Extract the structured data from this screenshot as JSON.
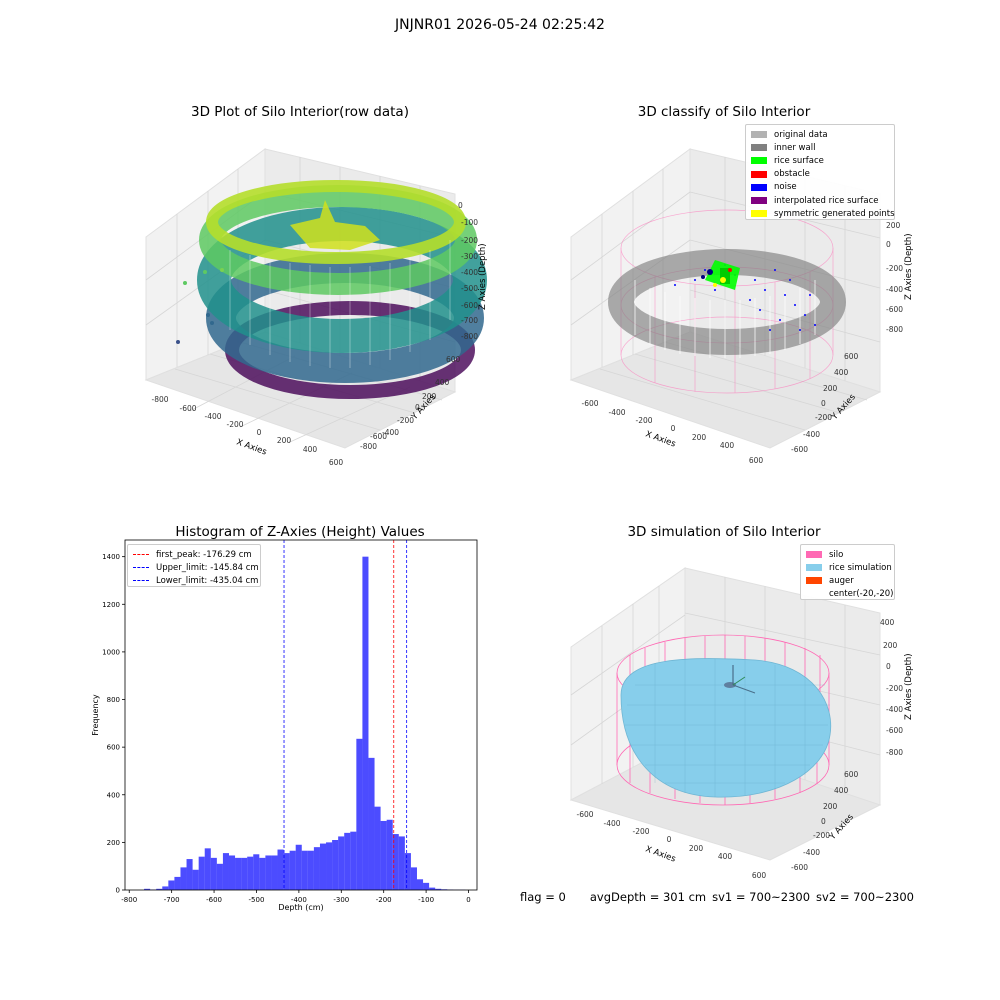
{
  "suptitle": "JNJNR01 2026-05-24 02:25:42",
  "panel1": {
    "title": "3D Plot of Silo Interior(row data)",
    "xlabel": "X Axies",
    "ylabel": "Y Axies",
    "zlabel": "Z Axies (Depth)",
    "xticks": [
      "-800",
      "-600",
      "-400",
      "-200",
      "0",
      "200",
      "400",
      "600"
    ],
    "yticks": [
      "600",
      "400",
      "200",
      "0",
      "-200",
      "-400",
      "-600",
      "-800"
    ],
    "zticks": [
      "0",
      "-100",
      "-200",
      "-300",
      "-400",
      "-500",
      "-600",
      "-700",
      "-800"
    ]
  },
  "panel2": {
    "title": "3D classify of Silo Interior",
    "xlabel": "X Axies",
    "ylabel": "Y Axies",
    "zlabel": "Z Axies (Depth)",
    "xticks": [
      "-600",
      "-400",
      "-200",
      "0",
      "200",
      "400",
      "600"
    ],
    "yticks": [
      "600",
      "400",
      "200",
      "0",
      "-200",
      "-400",
      "-600"
    ],
    "zticks": [
      "200",
      "0",
      "-200",
      "-400",
      "-600",
      "-800"
    ],
    "legend": [
      {
        "label": "original data",
        "color": "#b2b2b2"
      },
      {
        "label": "inner wall",
        "color": "#808080"
      },
      {
        "label": "rice surface",
        "color": "#00ff00"
      },
      {
        "label": "obstacle",
        "color": "#ff0000"
      },
      {
        "label": "noise",
        "color": "#0000ff"
      },
      {
        "label": "interpolated rice surface",
        "color": "#800080"
      },
      {
        "label": "symmetric generated points",
        "color": "#ffff00"
      }
    ]
  },
  "panel4": {
    "title": "3D simulation of Silo Interior",
    "xlabel": "X Axies",
    "ylabel": "Y Axies",
    "zlabel": "Z Axies (Depth)",
    "xticks": [
      "-600",
      "-400",
      "-200",
      "0",
      "200",
      "400",
      "600"
    ],
    "yticks": [
      "600",
      "400",
      "200",
      "0",
      "-200",
      "-400",
      "-600"
    ],
    "zticks": [
      "400",
      "200",
      "0",
      "-200",
      "-400",
      "-600",
      "-800"
    ],
    "legend": [
      {
        "label": "silo",
        "color": "#ff69b4"
      },
      {
        "label": "rice simulation",
        "color": "#87ceeb"
      },
      {
        "label": "auger",
        "color": "#ff4500"
      },
      {
        "label": "center(-20,-20)",
        "color": ""
      }
    ]
  },
  "status": {
    "flag": "flag = 0",
    "avg_depth": "avgDepth = 301 cm",
    "sv1": "sv1 = 700~2300",
    "sv2": "sv2 = 700~2300"
  },
  "chart_data": {
    "type": "histogram",
    "title": "Histogram of Z-Axies (Height) Values",
    "xlabel": "Depth (cm)",
    "ylabel": "Frequency",
    "xlim": [
      -810,
      20
    ],
    "ylim": [
      0,
      1470
    ],
    "xticks": [
      -800,
      -700,
      -600,
      -500,
      -400,
      -300,
      -200,
      -100,
      0
    ],
    "yticks": [
      0,
      200,
      400,
      600,
      800,
      1000,
      1200,
      1400
    ],
    "bar_color": "#0000ff",
    "bin_width": 14.3,
    "bins_start": [
      -765,
      -750.7,
      -736.4,
      -722.1,
      -707.8,
      -693.5,
      -679.2,
      -664.9,
      -650.6,
      -636.3,
      -622,
      -607.7,
      -593.4,
      -579.1,
      -564.8,
      -550.5,
      -536.2,
      -521.9,
      -507.6,
      -493.3,
      -479,
      -464.7,
      -450.4,
      -436.1,
      -421.8,
      -407.5,
      -393.2,
      -378.9,
      -364.6,
      -350.3,
      -336,
      -321.7,
      -307.4,
      -293.1,
      -278.8,
      -264.5,
      -250.2,
      -235.9,
      -221.6,
      -207.3,
      -193,
      -178.7,
      -164.4,
      -150.1,
      -135.8,
      -121.5,
      -107.2,
      -92.9,
      -78.6,
      -64.3,
      -50,
      -35.7,
      -21.4
    ],
    "values": [
      5,
      2,
      5,
      15,
      40,
      55,
      95,
      130,
      85,
      140,
      175,
      135,
      110,
      155,
      145,
      135,
      135,
      140,
      150,
      135,
      145,
      145,
      170,
      155,
      165,
      190,
      165,
      165,
      180,
      195,
      200,
      210,
      225,
      240,
      245,
      635,
      1400,
      555,
      350,
      290,
      295,
      235,
      225,
      155,
      95,
      45,
      30,
      10,
      5,
      3,
      2,
      1,
      1
    ],
    "vlines": [
      {
        "label": "first_peak: -176.29 cm",
        "x": -176.29,
        "color": "#ff0000"
      },
      {
        "label": "Upper_limit: -145.84 cm",
        "x": -145.84,
        "color": "#0000ff"
      },
      {
        "label": "Lower_limit: -435.04 cm",
        "x": -435.04,
        "color": "#0000ff"
      }
    ]
  }
}
